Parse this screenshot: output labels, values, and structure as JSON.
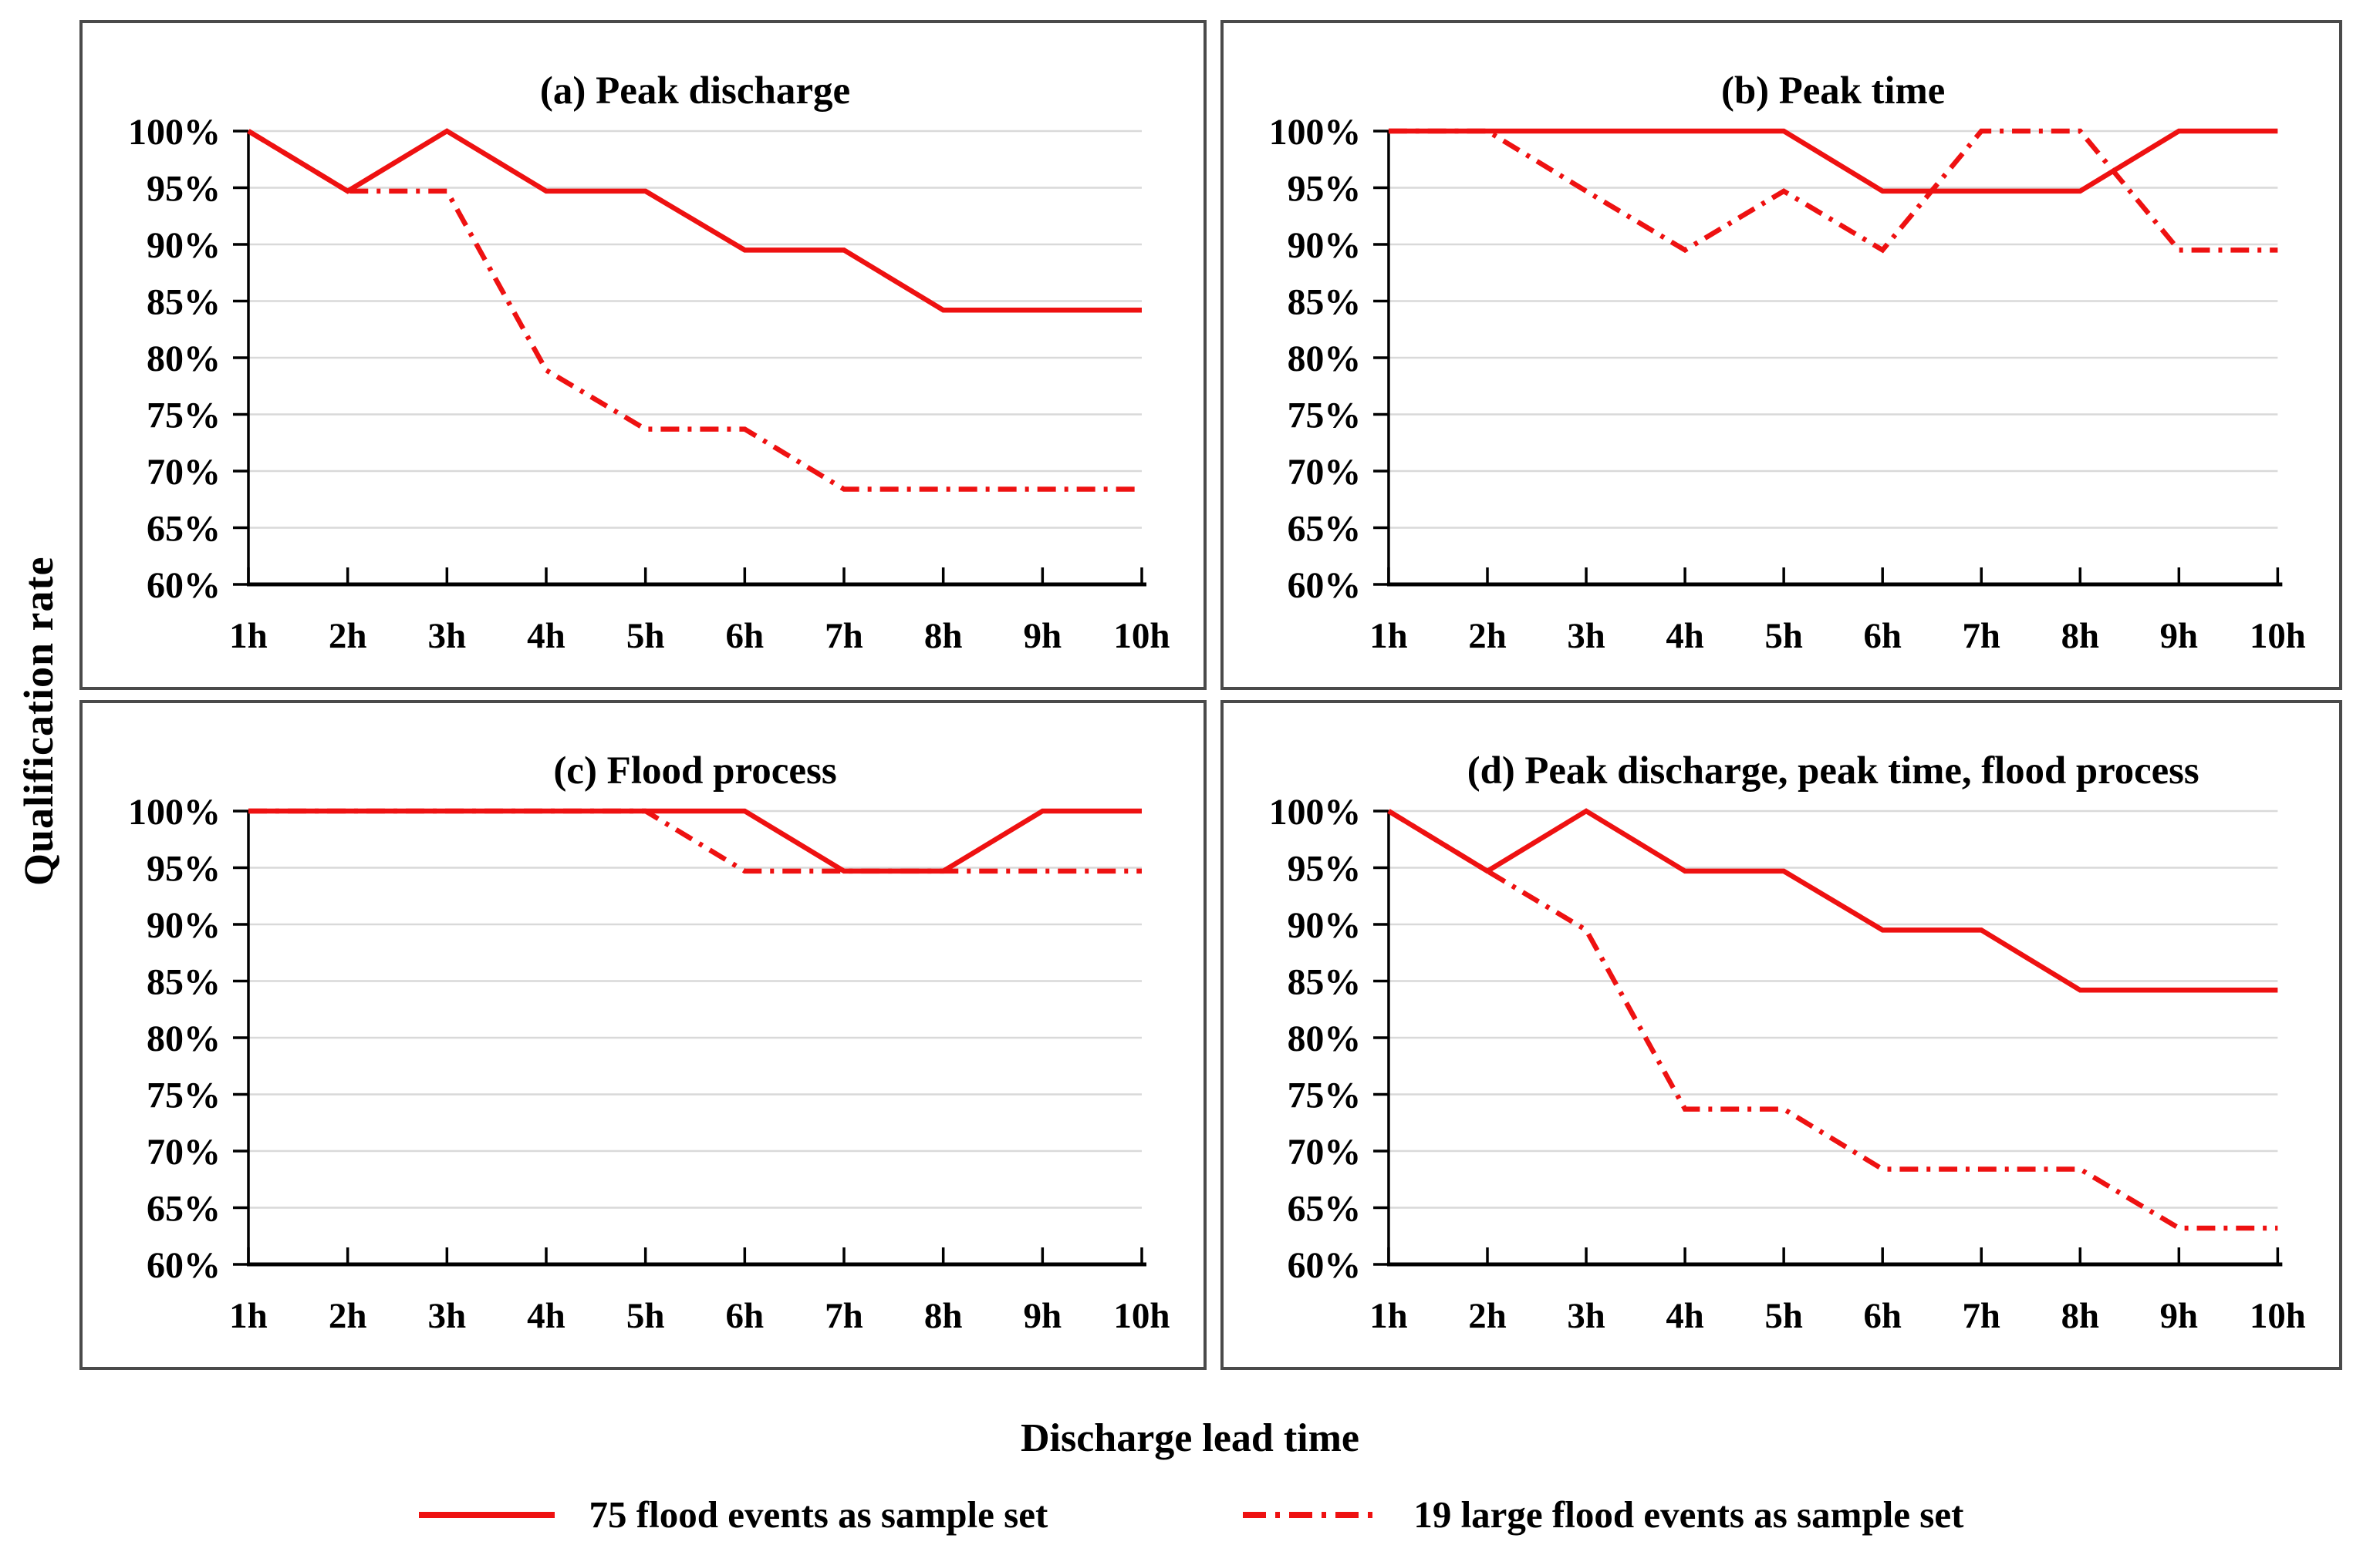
{
  "figure": {
    "y_axis_title": "Qualification rate",
    "x_axis_title": "Discharge lead time",
    "accent_color": "#ee1111",
    "gridline_color": "#d9d9d9",
    "axis_color": "#000000",
    "panel_border_color": "#4a4a4a",
    "y_tick_labels": [
      "100%",
      "95%",
      "90%",
      "85%",
      "80%",
      "75%",
      "70%",
      "65%",
      "60%"
    ],
    "x_tick_labels": [
      "1h",
      "2h",
      "3h",
      "4h",
      "5h",
      "6h",
      "7h",
      "8h",
      "9h",
      "10h"
    ],
    "legend": [
      {
        "label": "75 flood events as sample set",
        "style": "solid"
      },
      {
        "label": "19 large flood events as sample set",
        "style": "dash-dot"
      }
    ]
  },
  "chart_data": [
    {
      "type": "line",
      "panel": "a",
      "title": "(a) Peak discharge",
      "categories": [
        "1h",
        "2h",
        "3h",
        "4h",
        "5h",
        "6h",
        "7h",
        "8h",
        "9h",
        "10h"
      ],
      "ylabel": "Qualification rate",
      "xlabel": "Discharge lead time",
      "ylim": [
        60,
        100
      ],
      "ytick_step": 5,
      "grid": true,
      "series": [
        {
          "name": "75 flood events as sample set",
          "style": "solid",
          "values": [
            100,
            94.7,
            100,
            94.7,
            94.7,
            89.5,
            89.5,
            84.2,
            84.2,
            84.2
          ]
        },
        {
          "name": "19 large flood events as sample set",
          "style": "dash-dot",
          "values": [
            100,
            94.7,
            94.7,
            78.9,
            73.7,
            73.7,
            68.4,
            68.4,
            68.4,
            68.4
          ]
        }
      ]
    },
    {
      "type": "line",
      "panel": "b",
      "title": "(b) Peak time",
      "categories": [
        "1h",
        "2h",
        "3h",
        "4h",
        "5h",
        "6h",
        "7h",
        "8h",
        "9h",
        "10h"
      ],
      "ylabel": "Qualification rate",
      "xlabel": "Discharge lead time",
      "ylim": [
        60,
        100
      ],
      "ytick_step": 5,
      "grid": true,
      "series": [
        {
          "name": "75 flood events as sample set",
          "style": "solid",
          "values": [
            100,
            100,
            100,
            100,
            100,
            94.7,
            94.7,
            94.7,
            100,
            100
          ]
        },
        {
          "name": "19 large flood events as sample set",
          "style": "dash-dot",
          "values": [
            100,
            100,
            94.7,
            89.5,
            94.7,
            89.5,
            100,
            100,
            89.5,
            89.5
          ]
        }
      ]
    },
    {
      "type": "line",
      "panel": "c",
      "title": "(c) Flood process",
      "categories": [
        "1h",
        "2h",
        "3h",
        "4h",
        "5h",
        "6h",
        "7h",
        "8h",
        "9h",
        "10h"
      ],
      "ylabel": "Qualification rate",
      "xlabel": "Discharge lead time",
      "ylim": [
        60,
        100
      ],
      "ytick_step": 5,
      "grid": true,
      "series": [
        {
          "name": "75 flood events as sample set",
          "style": "solid",
          "values": [
            100,
            100,
            100,
            100,
            100,
            100,
            94.7,
            94.7,
            100,
            100
          ]
        },
        {
          "name": "19 large flood events as sample set",
          "style": "dash-dot",
          "values": [
            100,
            100,
            100,
            100,
            100,
            94.7,
            94.7,
            94.7,
            94.7,
            94.7
          ]
        }
      ]
    },
    {
      "type": "line",
      "panel": "d",
      "title": "(d) Peak discharge, peak time, flood process",
      "categories": [
        "1h",
        "2h",
        "3h",
        "4h",
        "5h",
        "6h",
        "7h",
        "8h",
        "9h",
        "10h"
      ],
      "ylabel": "Qualification rate",
      "xlabel": "Discharge lead time",
      "ylim": [
        60,
        100
      ],
      "ytick_step": 5,
      "grid": true,
      "series": [
        {
          "name": "75 flood events as sample set",
          "style": "solid",
          "values": [
            100,
            94.7,
            100,
            94.7,
            94.7,
            89.5,
            89.5,
            84.2,
            84.2,
            84.2
          ]
        },
        {
          "name": "19 large flood events as sample set",
          "style": "dash-dot",
          "values": [
            100,
            94.7,
            89.5,
            73.7,
            73.7,
            68.4,
            68.4,
            68.4,
            63.2,
            63.2
          ]
        }
      ]
    }
  ]
}
